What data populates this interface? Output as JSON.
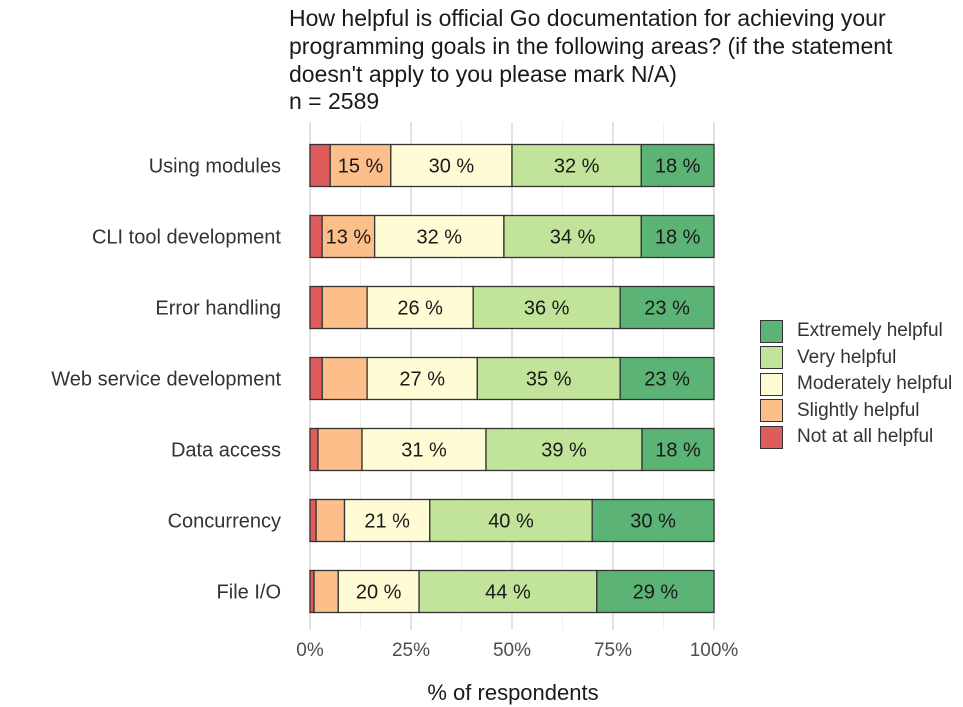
{
  "chart_data": {
    "type": "bar",
    "orientation": "horizontal",
    "stacked": true,
    "title": "How helpful is official Go documentation for achieving your programming goals in the following areas? (if the statement doesn't apply to you please mark N/A)",
    "subtitle": "n = 2589",
    "xlabel": "% of respondents",
    "ylabel": "",
    "xlim": [
      0,
      100
    ],
    "x_ticks": [
      "0%",
      "25%",
      "50%",
      "75%",
      "100%"
    ],
    "x_tick_values": [
      0,
      25,
      50,
      75,
      100
    ],
    "grid": true,
    "legend_position": "right",
    "categories": [
      "Using modules",
      "CLI tool development",
      "Error handling",
      "Web service development",
      "Data access",
      "Concurrency",
      "File I/O"
    ],
    "series": [
      {
        "name": "Not at all helpful",
        "color": "#e05b5b",
        "values": [
          5,
          3,
          3,
          3,
          2,
          1.5,
          1
        ],
        "labels": [
          "",
          "",
          "",
          "",
          "",
          "",
          ""
        ]
      },
      {
        "name": "Slightly helpful",
        "color": "#fdbf8a",
        "values": [
          15,
          13,
          11,
          11,
          11,
          7,
          6
        ],
        "labels": [
          "15 %",
          "13 %",
          "",
          "",
          "",
          "",
          ""
        ]
      },
      {
        "name": "Moderately helpful",
        "color": "#fffbd4",
        "values": [
          30,
          32,
          26,
          27,
          31,
          21,
          20
        ],
        "labels": [
          "30 %",
          "32 %",
          "26 %",
          "27 %",
          "31 %",
          "21 %",
          "20 %"
        ]
      },
      {
        "name": "Very helpful",
        "color": "#c2e39a",
        "values": [
          32,
          34,
          36,
          35,
          39,
          40,
          44
        ],
        "labels": [
          "32 %",
          "34 %",
          "36 %",
          "35 %",
          "39 %",
          "40 %",
          "44 %"
        ]
      },
      {
        "name": "Extremely helpful",
        "color": "#5bb376",
        "values": [
          18,
          18,
          23,
          23,
          18,
          30,
          29
        ],
        "labels": [
          "18 %",
          "18 %",
          "23 %",
          "23 %",
          "18 %",
          "30 %",
          "29 %"
        ]
      }
    ],
    "legend_order": [
      "Extremely helpful",
      "Very helpful",
      "Moderately helpful",
      "Slightly helpful",
      "Not at all helpful"
    ]
  }
}
